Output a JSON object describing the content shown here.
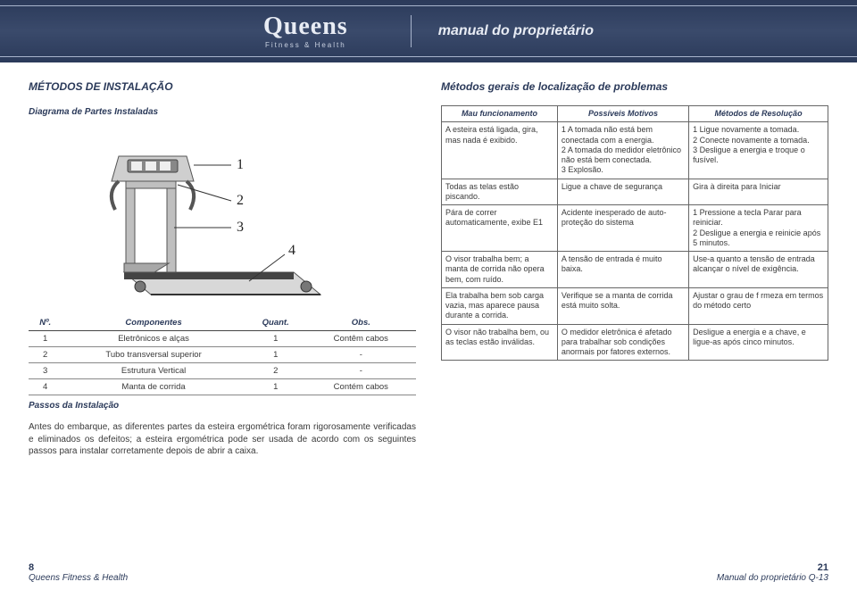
{
  "header": {
    "brand": "Queens",
    "brand_sub": "Fitness & Health",
    "manual_title": "manual do proprietário"
  },
  "left": {
    "title": "MÉTODOS DE INSTALAÇÃO",
    "diagram_caption": "Diagrama de Partes Instaladas",
    "diagram": {
      "callouts": [
        "1",
        "2",
        "3",
        "4"
      ]
    },
    "components_table": {
      "headers": [
        "Nº.",
        "Componentes",
        "Quant.",
        "Obs."
      ],
      "rows": [
        [
          "1",
          "Eletrônicos e alças",
          "1",
          "Contêm cabos"
        ],
        [
          "2",
          "Tubo transversal superior",
          "1",
          "-"
        ],
        [
          "3",
          "Estrutura Vertical",
          "2",
          "-"
        ],
        [
          "4",
          "Manta de corrida",
          "1",
          "Contém cabos"
        ]
      ]
    },
    "steps_heading": "Passos da Instalação",
    "steps_text": "Antes do embarque, as diferentes partes da esteira ergométrica foram rigorosamente verificadas e eliminados os defeitos; a esteira ergométrica pode ser usada de acordo com os seguintes passos para instalar corretamente depois de abrir a caixa."
  },
  "right": {
    "title": "Métodos gerais de localização de problemas",
    "headers": [
      "Mau funcionamento",
      "Possíveis Motivos",
      "Métodos de Resolução"
    ],
    "rows": [
      {
        "c0": "A esteira está ligada, gira, mas nada é exibido.",
        "c1": "1 A tomada não está bem conectada com a energia.\n2 A tomada do medidor eletrônico não está bem conectada.\n3 Explosão.",
        "c2": "1 Ligue novamente a tomada.\n2 Conecte novamente a tomada.\n3 Desligue a energia e troque o fusível."
      },
      {
        "c0": "Todas as telas estão piscando.",
        "c1": "Ligue a chave de segurança",
        "c2": "Gira à direita para Iniciar"
      },
      {
        "c0": "Pára de correr automaticamente, exibe E1",
        "c1": "Acidente inesperado de auto-proteção do sistema",
        "c2": "1 Pressione a tecla Parar para reiniciar.\n2 Desligue a energia e reinicie após 5 minutos."
      },
      {
        "c0": "O visor trabalha bem; a manta de corrida não opera bem, com ruído.",
        "c1": "A tensão de entrada é muito baixa.",
        "c2": "Use-a quanto a tensão de entrada alcançar o nível de exigência."
      },
      {
        "c0": "Ela trabalha bem sob carga vazia, mas aparece pausa durante a corrida.",
        "c1": "Verifique se a manta de corrida está muito solta.",
        "c2": "Ajustar o grau de f rmeza em termos do método certo"
      },
      {
        "c0": "O visor não trabalha bem, ou as teclas estão inválidas.",
        "c1": "O medidor eletrônica é afetado para trabalhar sob condições anormais por fatores externos.",
        "c2": "Desligue a energia e a chave, e ligue-as após cinco minutos."
      }
    ]
  },
  "footer": {
    "left_page": "8",
    "left_text": "Queens Fitness & Health",
    "right_page": "21",
    "right_text": "Manual do proprietário Q-13"
  }
}
